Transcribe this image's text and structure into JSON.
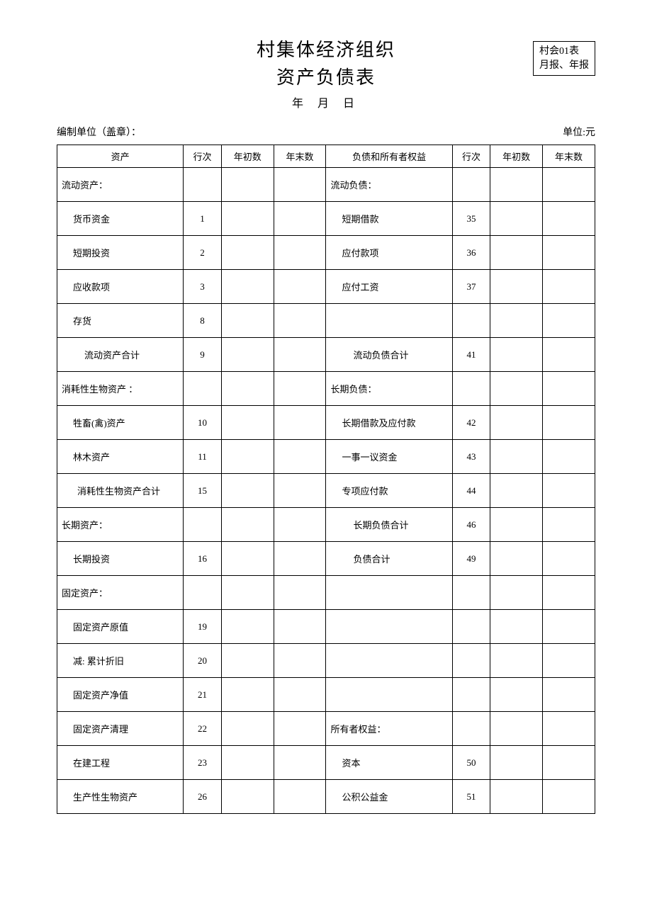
{
  "title": {
    "line1": "村集体经济组织",
    "line2": "资产负债表",
    "date_year": "年",
    "date_month": "月",
    "date_day": "日"
  },
  "stamp": {
    "line1": "村会01表",
    "line2": "月报、年报"
  },
  "meta": {
    "left": "编制单位（盖章）：",
    "right": "单位:元"
  },
  "headers": {
    "asset": "资产",
    "line": "行次",
    "begin": "年初数",
    "end": "年末数",
    "liab": "负债和所有者权益"
  },
  "rows": [
    {
      "a_label": "流动资产：",
      "a_indent": 0,
      "a_line": "",
      "l_label": "流动负债：",
      "l_indent": 0,
      "l_line": ""
    },
    {
      "a_label": "货币资金",
      "a_indent": 1,
      "a_line": "1",
      "l_label": "短期借款",
      "l_indent": 1,
      "l_line": "35"
    },
    {
      "a_label": "短期投资",
      "a_indent": 1,
      "a_line": "2",
      "l_label": "应付款项",
      "l_indent": 1,
      "l_line": "36"
    },
    {
      "a_label": "应收款项",
      "a_indent": 1,
      "a_line": "3",
      "l_label": "应付工资",
      "l_indent": 1,
      "l_line": "37"
    },
    {
      "a_label": "存货",
      "a_indent": 1,
      "a_line": "8",
      "l_label": "",
      "l_indent": 0,
      "l_line": ""
    },
    {
      "a_label": "流动资产合计",
      "a_indent": 2,
      "a_line": "9",
      "l_label": "流动负债合计",
      "l_indent": 2,
      "l_line": "41"
    },
    {
      "a_label": "消耗性生物资产 ：",
      "a_indent": 0,
      "a_line": "",
      "l_label": "长期负债：",
      "l_indent": 0,
      "l_line": ""
    },
    {
      "a_label": "牲畜(禽)资产",
      "a_indent": 1,
      "a_line": "10",
      "l_label": "长期借款及应付款",
      "l_indent": 1,
      "l_line": "42"
    },
    {
      "a_label": "林木资产",
      "a_indent": 1,
      "a_line": "11",
      "l_label": "一事一议资金",
      "l_indent": 1,
      "l_line": "43"
    },
    {
      "a_label": "消耗性生物资产合计",
      "a_indent": 3,
      "a_line": "15",
      "l_label": "专项应付款",
      "l_indent": 1,
      "l_line": "44"
    },
    {
      "a_label": "长期资产：",
      "a_indent": 0,
      "a_line": "",
      "l_label": "长期负债合计",
      "l_indent": 2,
      "l_line": "46"
    },
    {
      "a_label": "长期投资",
      "a_indent": 1,
      "a_line": "16",
      "l_label": "负债合计",
      "l_indent": 2,
      "l_line": "49"
    },
    {
      "a_label": "固定资产：",
      "a_indent": 0,
      "a_line": "",
      "l_label": "",
      "l_indent": 0,
      "l_line": ""
    },
    {
      "a_label": "固定资产原值",
      "a_indent": 1,
      "a_line": "19",
      "l_label": "",
      "l_indent": 0,
      "l_line": ""
    },
    {
      "a_label": "减: 累计折旧",
      "a_indent": 1,
      "a_line": "20",
      "l_label": "",
      "l_indent": 0,
      "l_line": ""
    },
    {
      "a_label": "固定资产净值",
      "a_indent": 1,
      "a_line": "21",
      "l_label": "",
      "l_indent": 0,
      "l_line": ""
    },
    {
      "a_label": "固定资产清理",
      "a_indent": 1,
      "a_line": "22",
      "l_label": "所有者权益：",
      "l_indent": 0,
      "l_line": ""
    },
    {
      "a_label": "在建工程",
      "a_indent": 1,
      "a_line": "23",
      "l_label": "资本",
      "l_indent": 1,
      "l_line": "50"
    },
    {
      "a_label": "生产性生物资产",
      "a_indent": 1,
      "a_line": "26",
      "l_label": "公积公益金",
      "l_indent": 1,
      "l_line": "51"
    }
  ]
}
